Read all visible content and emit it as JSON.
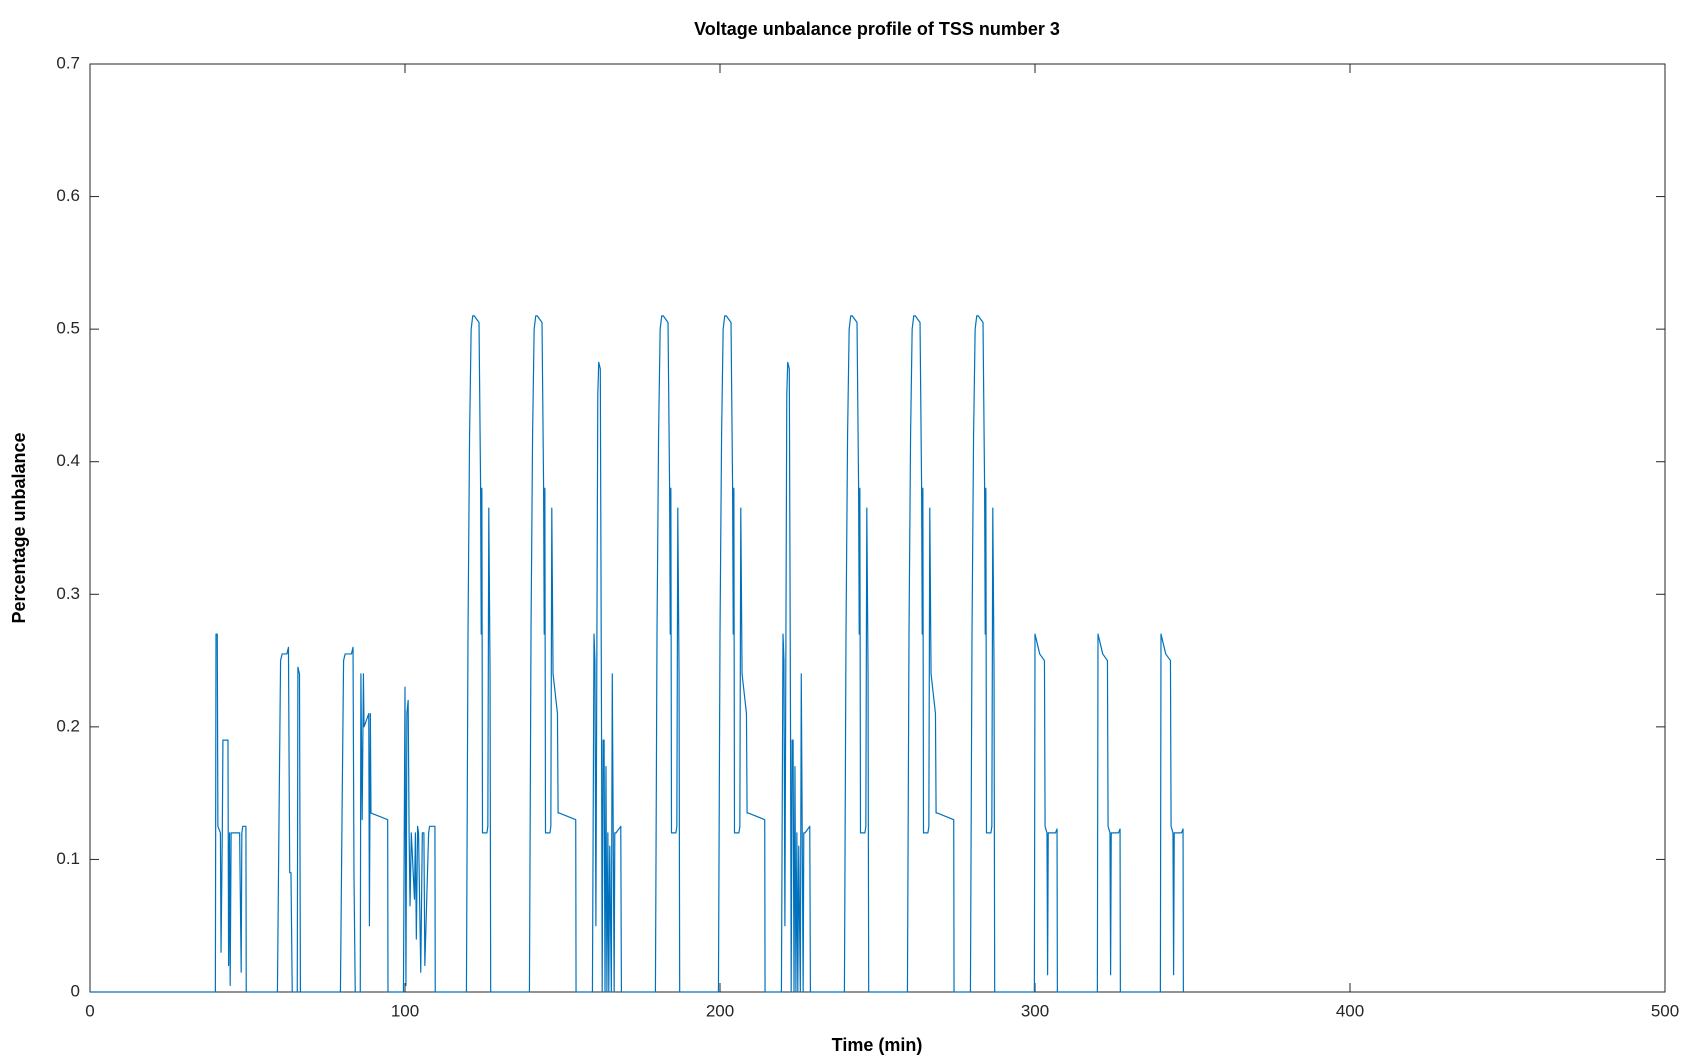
{
  "chart_data": {
    "type": "line",
    "title": "Voltage unbalance profile of TSS number 3",
    "xlabel": "Time (min)",
    "ylabel": "Percentage unbalance",
    "color": "#0072bd",
    "xlim": [
      0,
      500
    ],
    "xticks": [
      0,
      100,
      200,
      300,
      400,
      500
    ],
    "ylim": [
      0,
      0.7
    ],
    "yticks": [
      0,
      0.1,
      0.2,
      0.3,
      0.4,
      0.5,
      0.6,
      0.7
    ],
    "x": [
      0,
      39.8,
      40,
      40.4,
      40.6,
      41.4,
      41.6,
      42,
      42.2,
      43.8,
      44,
      44.3,
      44.5,
      44.8,
      45,
      45.2,
      47.5,
      48,
      48.2,
      48.5,
      49,
      49.3,
      49.5,
      49.6,
      59.5,
      60,
      60.5,
      61,
      62.5,
      63,
      63.4,
      63.8,
      64.2,
      65.8,
      66,
      66.5,
      66.8,
      79.5,
      80,
      80.5,
      81,
      83,
      83.5,
      83.8,
      84.2,
      85.8,
      86,
      86.4,
      86.8,
      87,
      88.5,
      88.7,
      89,
      89.2,
      94.5,
      94.6,
      99.5,
      100,
      100.3,
      100.6,
      101,
      101.3,
      101.6,
      102,
      102.3,
      103,
      103.3,
      103.6,
      104,
      104.3,
      105,
      105.5,
      106,
      106.3,
      107.5,
      107.8,
      108.5,
      109.5,
      109.6,
      119.5,
      120,
      120.5,
      121,
      121.5,
      122,
      123.5,
      124,
      124.2,
      124.4,
      124.6,
      126,
      126.3,
      126.6,
      127,
      127.2,
      139.5,
      140,
      140.5,
      141,
      141.5,
      142,
      143.5,
      144,
      144.2,
      144.4,
      144.6,
      146,
      146.3,
      146.6,
      147,
      148.4,
      148.6,
      149,
      154.2,
      154.3,
      159.5,
      160,
      160.3,
      160.6,
      161.2,
      161.5,
      162,
      162.4,
      162.6,
      162.9,
      163.2,
      163.5,
      163.8,
      164.1,
      164.4,
      164.7,
      165,
      165.5,
      165.8,
      166.4,
      166.6,
      167,
      168.5,
      168.7,
      179.5,
      180,
      180.5,
      181,
      181.5,
      182,
      183.5,
      184,
      184.2,
      184.4,
      184.6,
      186,
      186.3,
      186.6,
      187,
      187.2,
      199.5,
      200,
      200.5,
      201,
      201.5,
      202,
      203.5,
      204,
      204.2,
      204.4,
      204.6,
      206,
      206.3,
      206.6,
      207,
      208.4,
      208.6,
      209,
      214.2,
      214.3,
      219.5,
      220,
      220.3,
      220.6,
      221.2,
      221.5,
      222,
      222.4,
      222.6,
      222.9,
      223.2,
      223.5,
      223.8,
      224.1,
      224.4,
      224.7,
      225,
      225.5,
      225.8,
      226.4,
      226.6,
      227,
      228.5,
      228.7,
      239.5,
      240,
      240.5,
      241,
      241.5,
      242,
      243.5,
      244,
      244.2,
      244.4,
      244.6,
      246,
      246.3,
      246.6,
      247,
      247.2,
      259.5,
      260,
      260.5,
      261,
      261.5,
      262,
      263.5,
      264,
      264.2,
      264.4,
      264.6,
      266,
      266.3,
      266.6,
      267,
      268.4,
      268.6,
      269,
      274.2,
      274.3,
      279.5,
      280,
      280.5,
      281,
      281.5,
      282,
      283.5,
      284,
      284.2,
      284.4,
      284.6,
      286,
      286.3,
      286.6,
      287,
      287.2,
      299.8,
      300,
      301,
      301.5,
      303,
      303.2,
      303.8,
      304,
      304.2,
      305.5,
      306.5,
      307,
      307.1,
      319.8,
      320,
      321,
      321.5,
      323,
      323.2,
      323.8,
      324,
      324.2,
      325.5,
      326.5,
      327,
      327.1,
      339.8,
      340,
      341,
      341.5,
      343,
      343.2,
      343.8,
      344,
      344.2,
      345.5,
      346.5,
      347,
      347.1
    ],
    "values": [
      0,
      0,
      0.27,
      0.27,
      0.125,
      0.12,
      0.03,
      0.12,
      0.19,
      0.19,
      0.02,
      0.12,
      0.005,
      0.12,
      0.12,
      0.12,
      0.12,
      0.015,
      0.12,
      0.125,
      0.125,
      0.125,
      0.125,
      0,
      0,
      0.13,
      0.25,
      0.255,
      0.255,
      0.26,
      0.09,
      0.09,
      0,
      0,
      0.245,
      0.24,
      0,
      0,
      0.13,
      0.25,
      0.255,
      0.255,
      0.26,
      0.09,
      0,
      0,
      0.24,
      0.13,
      0.24,
      0.2,
      0.21,
      0.05,
      0.21,
      0.135,
      0.13,
      0,
      0,
      0.23,
      0.005,
      0.21,
      0.22,
      0.12,
      0.065,
      0.12,
      0.105,
      0.07,
      0.12,
      0.04,
      0.125,
      0.12,
      0.015,
      0.12,
      0.12,
      0.02,
      0.12,
      0.125,
      0.125,
      0.125,
      0,
      0,
      0.27,
      0.42,
      0.5,
      0.51,
      0.51,
      0.505,
      0.38,
      0.27,
      0.38,
      0.12,
      0.12,
      0.125,
      0.365,
      0.24,
      0,
      0,
      0.27,
      0.42,
      0.5,
      0.51,
      0.51,
      0.505,
      0.38,
      0.27,
      0.38,
      0.12,
      0.12,
      0.125,
      0.365,
      0.24,
      0.21,
      0.135,
      0.135,
      0.13,
      0,
      0,
      0.27,
      0.25,
      0.05,
      0.45,
      0.475,
      0.47,
      0.19,
      0,
      0.19,
      0.19,
      0,
      0.17,
      0,
      0.12,
      0,
      0.11,
      0,
      0.24,
      0,
      0.12,
      0.12,
      0.125,
      0,
      0,
      0.27,
      0.42,
      0.5,
      0.51,
      0.51,
      0.505,
      0.38,
      0.27,
      0.38,
      0.12,
      0.12,
      0.125,
      0.365,
      0.24,
      0,
      0,
      0.27,
      0.42,
      0.5,
      0.51,
      0.51,
      0.505,
      0.38,
      0.27,
      0.38,
      0.12,
      0.12,
      0.125,
      0.365,
      0.24,
      0.21,
      0.135,
      0.135,
      0.13,
      0,
      0,
      0.27,
      0.25,
      0.05,
      0.45,
      0.475,
      0.47,
      0.19,
      0,
      0.19,
      0.19,
      0,
      0.17,
      0,
      0.12,
      0,
      0.11,
      0,
      0.24,
      0,
      0.12,
      0.12,
      0.125,
      0,
      0,
      0.27,
      0.42,
      0.5,
      0.51,
      0.51,
      0.505,
      0.38,
      0.27,
      0.38,
      0.12,
      0.12,
      0.125,
      0.365,
      0.24,
      0,
      0,
      0.27,
      0.42,
      0.5,
      0.51,
      0.51,
      0.505,
      0.38,
      0.27,
      0.38,
      0.12,
      0.12,
      0.125,
      0.365,
      0.24,
      0.21,
      0.135,
      0.135,
      0.13,
      0,
      0,
      0.27,
      0.42,
      0.5,
      0.51,
      0.51,
      0.505,
      0.38,
      0.27,
      0.38,
      0.12,
      0.12,
      0.125,
      0.365,
      0.24,
      0,
      0,
      0.27,
      0.26,
      0.255,
      0.25,
      0.125,
      0.12,
      0.013,
      0.12,
      0.12,
      0.12,
      0.123,
      0,
      0,
      0.27,
      0.26,
      0.255,
      0.25,
      0.125,
      0.12,
      0.013,
      0.12,
      0.12,
      0.12,
      0.123,
      0,
      0,
      0.27,
      0.26,
      0.255,
      0.25,
      0.125,
      0.12,
      0.013,
      0.12,
      0.12,
      0.12,
      0.123,
      0
    ]
  }
}
